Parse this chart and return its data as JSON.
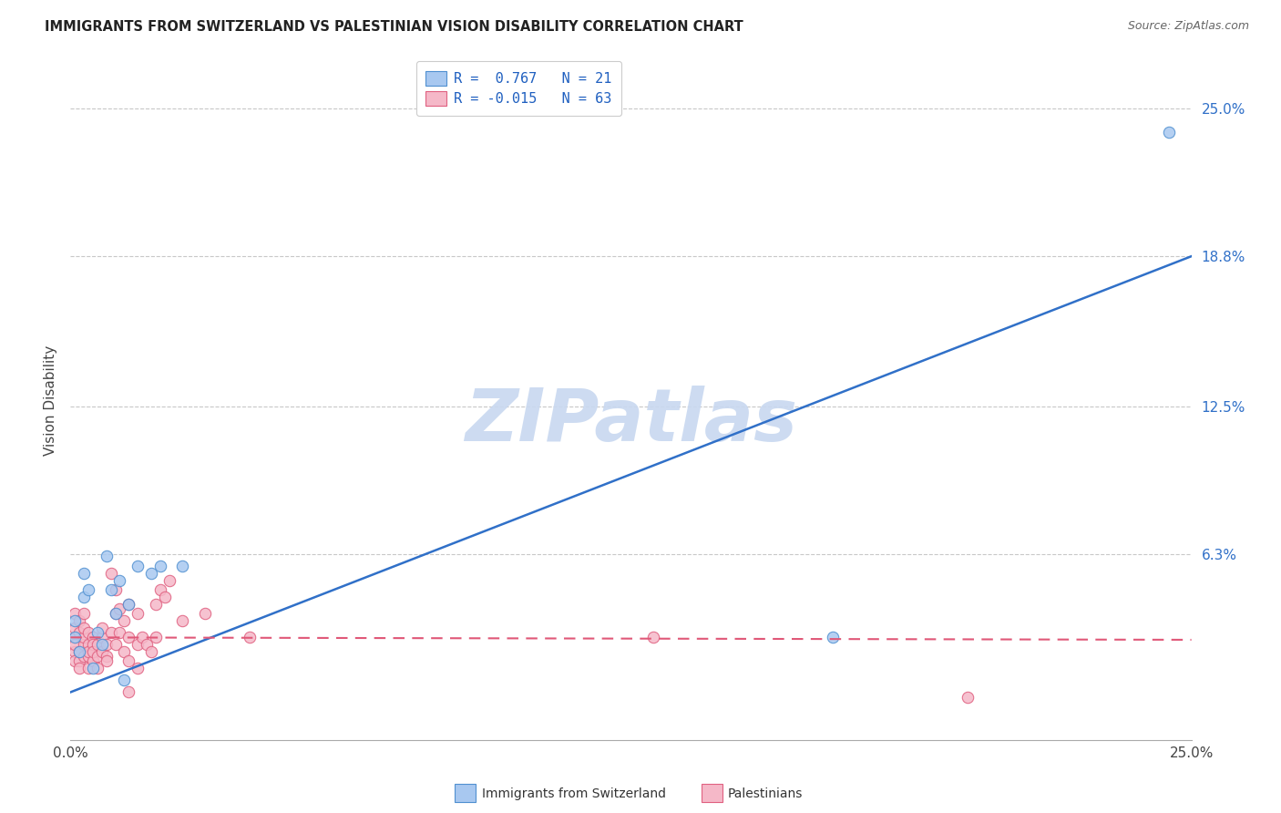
{
  "title": "IMMIGRANTS FROM SWITZERLAND VS PALESTINIAN VISION DISABILITY CORRELATION CHART",
  "source": "Source: ZipAtlas.com",
  "ylabel": "Vision Disability",
  "ytick_values": [
    0.063,
    0.125,
    0.188,
    0.25
  ],
  "ytick_labels": [
    "6.3%",
    "12.5%",
    "18.8%",
    "25.0%"
  ],
  "xmin": 0.0,
  "xmax": 0.25,
  "ymin": -0.015,
  "ymax": 0.27,
  "color_blue": "#A8C8F0",
  "color_pink": "#F5B8C8",
  "edge_blue": "#5090D0",
  "edge_pink": "#E06080",
  "line_blue_color": "#3070C8",
  "line_pink_color": "#E05878",
  "watermark_text": "ZIPatlas",
  "watermark_color": "#C8D8F0",
  "grid_color": "#C8C8C8",
  "bg_color": "#ffffff",
  "legend_blue_text": "R =  0.767   N = 21",
  "legend_pink_text": "R = -0.015   N = 63",
  "legend_text_color": "#2060C0",
  "bottom_legend_blue": "Immigrants from Switzerland",
  "bottom_legend_pink": "Palestinians",
  "blue_line_x0": 0.0,
  "blue_line_y0": 0.005,
  "blue_line_x1": 0.25,
  "blue_line_y1": 0.188,
  "pink_line_x0": 0.0,
  "pink_line_y0": 0.028,
  "pink_line_x1": 0.25,
  "pink_line_y1": 0.027,
  "scatter_blue": [
    [
      0.001,
      0.035
    ],
    [
      0.001,
      0.028
    ],
    [
      0.002,
      0.022
    ],
    [
      0.003,
      0.055
    ],
    [
      0.003,
      0.045
    ],
    [
      0.004,
      0.048
    ],
    [
      0.005,
      0.015
    ],
    [
      0.006,
      0.03
    ],
    [
      0.007,
      0.025
    ],
    [
      0.008,
      0.062
    ],
    [
      0.009,
      0.048
    ],
    [
      0.01,
      0.038
    ],
    [
      0.011,
      0.052
    ],
    [
      0.012,
      0.01
    ],
    [
      0.013,
      0.042
    ],
    [
      0.015,
      0.058
    ],
    [
      0.018,
      0.055
    ],
    [
      0.02,
      0.058
    ],
    [
      0.025,
      0.058
    ],
    [
      0.17,
      0.028
    ],
    [
      0.245,
      0.24
    ]
  ],
  "scatter_pink": [
    [
      0.001,
      0.022
    ],
    [
      0.001,
      0.028
    ],
    [
      0.001,
      0.032
    ],
    [
      0.001,
      0.038
    ],
    [
      0.001,
      0.018
    ],
    [
      0.001,
      0.025
    ],
    [
      0.002,
      0.03
    ],
    [
      0.002,
      0.035
    ],
    [
      0.002,
      0.018
    ],
    [
      0.002,
      0.022
    ],
    [
      0.002,
      0.015
    ],
    [
      0.003,
      0.025
    ],
    [
      0.003,
      0.028
    ],
    [
      0.003,
      0.02
    ],
    [
      0.003,
      0.032
    ],
    [
      0.003,
      0.038
    ],
    [
      0.004,
      0.025
    ],
    [
      0.004,
      0.03
    ],
    [
      0.004,
      0.02
    ],
    [
      0.004,
      0.015
    ],
    [
      0.004,
      0.022
    ],
    [
      0.005,
      0.028
    ],
    [
      0.005,
      0.025
    ],
    [
      0.005,
      0.018
    ],
    [
      0.005,
      0.022
    ],
    [
      0.006,
      0.025
    ],
    [
      0.006,
      0.02
    ],
    [
      0.006,
      0.015
    ],
    [
      0.007,
      0.028
    ],
    [
      0.007,
      0.032
    ],
    [
      0.007,
      0.022
    ],
    [
      0.008,
      0.025
    ],
    [
      0.008,
      0.02
    ],
    [
      0.008,
      0.018
    ],
    [
      0.009,
      0.055
    ],
    [
      0.009,
      0.03
    ],
    [
      0.01,
      0.048
    ],
    [
      0.01,
      0.038
    ],
    [
      0.01,
      0.025
    ],
    [
      0.011,
      0.04
    ],
    [
      0.011,
      0.03
    ],
    [
      0.012,
      0.035
    ],
    [
      0.012,
      0.022
    ],
    [
      0.013,
      0.042
    ],
    [
      0.013,
      0.028
    ],
    [
      0.013,
      0.018
    ],
    [
      0.013,
      0.005
    ],
    [
      0.015,
      0.038
    ],
    [
      0.015,
      0.025
    ],
    [
      0.015,
      0.015
    ],
    [
      0.016,
      0.028
    ],
    [
      0.017,
      0.025
    ],
    [
      0.018,
      0.022
    ],
    [
      0.019,
      0.042
    ],
    [
      0.019,
      0.028
    ],
    [
      0.02,
      0.048
    ],
    [
      0.021,
      0.045
    ],
    [
      0.022,
      0.052
    ],
    [
      0.025,
      0.035
    ],
    [
      0.03,
      0.038
    ],
    [
      0.04,
      0.028
    ],
    [
      0.13,
      0.028
    ],
    [
      0.2,
      0.003
    ]
  ]
}
